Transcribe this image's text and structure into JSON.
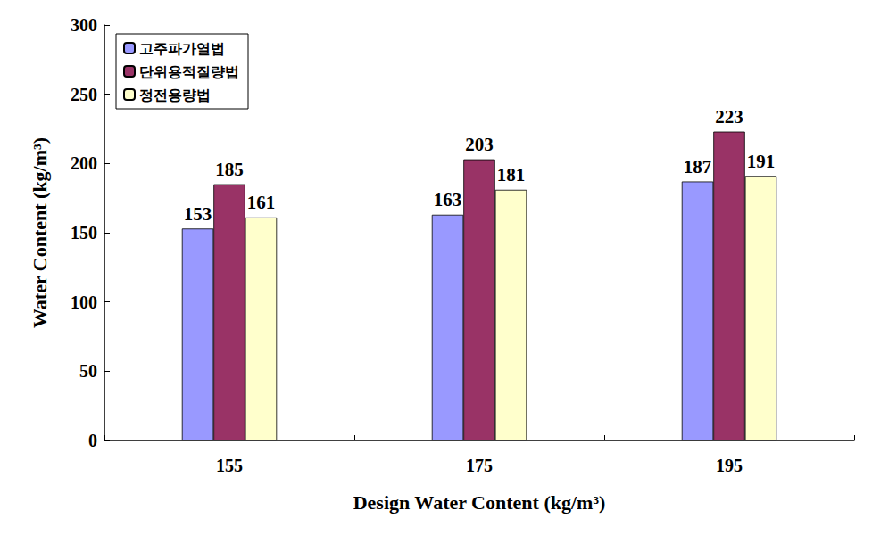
{
  "chart_data": {
    "type": "bar",
    "x_label": "Design Water Content (kg/m³)",
    "y_label": "Water Content (kg/m³)",
    "categories": [
      "155",
      "175",
      "195"
    ],
    "series": [
      {
        "name": "고주파가열법",
        "color": "#9999ff",
        "values": [
          153,
          163,
          187
        ]
      },
      {
        "name": "단위용적질량법",
        "color": "#993366",
        "values": [
          185,
          203,
          223
        ]
      },
      {
        "name": "정전용량법",
        "color": "#ffffcc",
        "values": [
          161,
          181,
          191
        ]
      }
    ],
    "ylim": [
      0,
      300
    ],
    "yticks": [
      0,
      50,
      100,
      150,
      200,
      250,
      300
    ],
    "grid": false,
    "data_labels": true,
    "legend": "upper left"
  }
}
